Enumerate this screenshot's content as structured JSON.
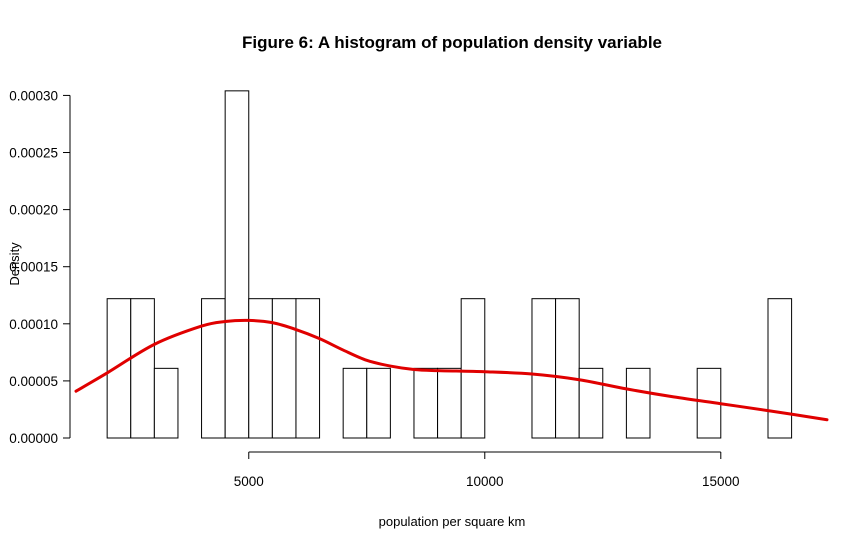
{
  "chart_data": {
    "type": "histogram",
    "title": "Figure 6: A histogram of population density variable",
    "xlabel": "population per square km",
    "ylabel": "Density",
    "xlim": [
      1340,
      17250
    ],
    "ylim": [
      0,
      0.00031
    ],
    "x_ticks": [
      5000,
      10000,
      15000
    ],
    "x_tick_labels": [
      "5000",
      "10000",
      "15000"
    ],
    "y_ticks": [
      0,
      5e-05,
      0.0001,
      0.00015,
      0.0002,
      0.00025,
      0.0003
    ],
    "y_tick_labels": [
      "0.00000",
      "0.00005",
      "0.00010",
      "0.00015",
      "0.00020",
      "0.00025",
      "0.00030"
    ],
    "bin_width": 500,
    "bins": [
      {
        "start": 2000,
        "density": 0.000122
      },
      {
        "start": 2500,
        "density": 0.000122
      },
      {
        "start": 3000,
        "density": 6.1e-05
      },
      {
        "start": 3500,
        "density": 0.0
      },
      {
        "start": 4000,
        "density": 0.000122
      },
      {
        "start": 4500,
        "density": 0.000304
      },
      {
        "start": 5000,
        "density": 0.000122
      },
      {
        "start": 5500,
        "density": 0.000122
      },
      {
        "start": 6000,
        "density": 0.000122
      },
      {
        "start": 6500,
        "density": 0.0
      },
      {
        "start": 7000,
        "density": 6.1e-05
      },
      {
        "start": 7500,
        "density": 6.1e-05
      },
      {
        "start": 8000,
        "density": 0.0
      },
      {
        "start": 8500,
        "density": 6.1e-05
      },
      {
        "start": 9000,
        "density": 6.1e-05
      },
      {
        "start": 9500,
        "density": 0.000122
      },
      {
        "start": 10000,
        "density": 0.0
      },
      {
        "start": 10500,
        "density": 0.0
      },
      {
        "start": 11000,
        "density": 0.000122
      },
      {
        "start": 11500,
        "density": 0.000122
      },
      {
        "start": 12000,
        "density": 6.1e-05
      },
      {
        "start": 12500,
        "density": 0.0
      },
      {
        "start": 13000,
        "density": 6.1e-05
      },
      {
        "start": 13500,
        "density": 0.0
      },
      {
        "start": 14000,
        "density": 0.0
      },
      {
        "start": 14500,
        "density": 6.1e-05
      },
      {
        "start": 15000,
        "density": 0.0
      },
      {
        "start": 15500,
        "density": 0.0
      },
      {
        "start": 16000,
        "density": 0.000122
      }
    ],
    "density_curve": {
      "color": "#e00000",
      "x": [
        1340,
        2000,
        3000,
        4000,
        4500,
        5000,
        5500,
        6000,
        6500,
        7000,
        7500,
        8000,
        8500,
        9000,
        10000,
        11000,
        12000,
        13000,
        14000,
        15000,
        16000,
        17250
      ],
      "y": [
        4.1e-05,
        5.7e-05,
        8.2e-05,
        9.8e-05,
        0.000102,
        0.000103,
        0.000101,
        9.5e-05,
        8.7e-05,
        7.7e-05,
        6.8e-05,
        6.3e-05,
        6e-05,
        5.9e-05,
        5.8e-05,
        5.6e-05,
        5.1e-05,
        4.3e-05,
        3.6e-05,
        3e-05,
        2.4e-05,
        1.6e-05
      ]
    }
  }
}
